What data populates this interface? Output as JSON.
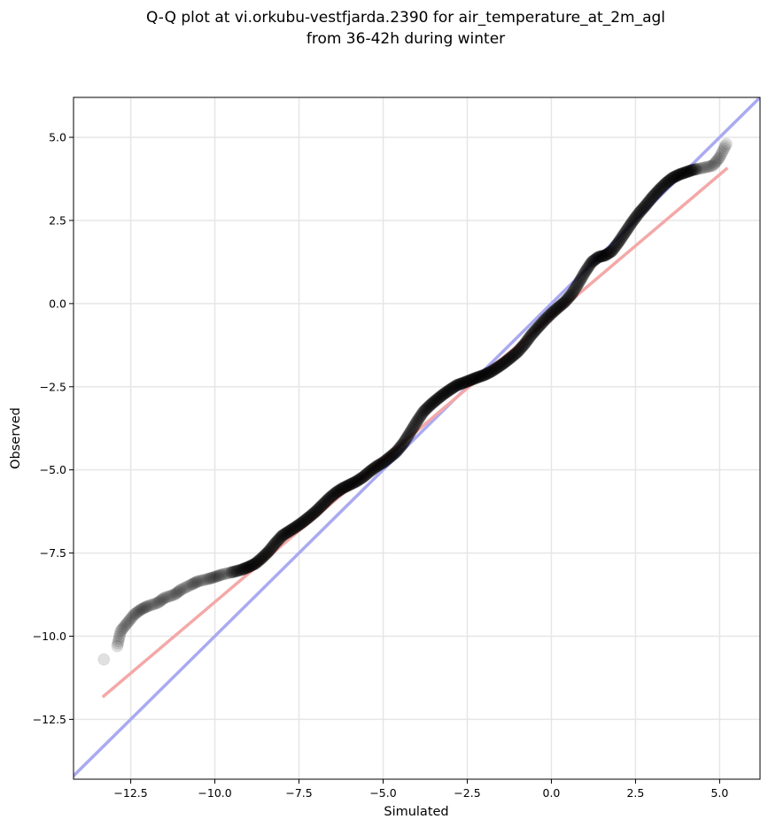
{
  "chart_data": {
    "type": "scatter",
    "title": "Q-Q plot at vi.orkubu-vestfjarda.2390 for air_temperature_at_2m_agl",
    "subtitle": "from 36-42h during winter",
    "xlabel": "Simulated",
    "ylabel": "Observed",
    "xlim": [
      -14.2,
      6.2
    ],
    "ylim": [
      -14.3,
      6.2
    ],
    "grid": true,
    "x_ticks": [
      -12.5,
      -10.0,
      -7.5,
      -5.0,
      -2.5,
      0.0,
      2.5,
      5.0
    ],
    "y_ticks": [
      -12.5,
      -10.0,
      -7.5,
      -5.0,
      -2.5,
      0.0,
      2.5,
      5.0
    ],
    "x_tick_labels": [
      "−12.5",
      "−10.0",
      "−7.5",
      "−5.0",
      "−2.5",
      "0.0",
      "2.5",
      "5.0"
    ],
    "y_tick_labels": [
      "−12.5",
      "−10.0",
      "−7.5",
      "−5.0",
      "−2.5",
      "0.0",
      "2.5",
      "5.0"
    ],
    "lines": [
      {
        "role": "identity",
        "color": "#aaaaf2",
        "x": [
          -14.2,
          6.2
        ],
        "y": [
          -14.2,
          6.2
        ]
      },
      {
        "role": "fit",
        "color": "#f4a8a8",
        "x": [
          -13.3,
          5.2
        ],
        "y": [
          -11.8,
          4.05
        ]
      }
    ],
    "quantile_points": {
      "color": "#000000",
      "x": [
        -13.3,
        -12.9,
        -12.8,
        -12.6,
        -12.4,
        -12.2,
        -12.0,
        -11.7,
        -11.5,
        -11.2,
        -11.0,
        -10.7,
        -10.5,
        -10.2,
        -10.0,
        -9.8,
        -9.5,
        -9.2,
        -9.0,
        -8.8,
        -8.6,
        -8.4,
        -8.2,
        -8.0,
        -7.8,
        -7.6,
        -7.4,
        -7.2,
        -7.0,
        -6.8,
        -6.6,
        -6.4,
        -6.2,
        -6.0,
        -5.8,
        -5.6,
        -5.4,
        -5.2,
        -5.0,
        -4.8,
        -4.6,
        -4.4,
        -4.2,
        -4.0,
        -3.8,
        -3.6,
        -3.4,
        -3.2,
        -3.0,
        -2.8,
        -2.6,
        -2.4,
        -2.2,
        -2.0,
        -1.8,
        -1.6,
        -1.4,
        -1.2,
        -1.0,
        -0.8,
        -0.6,
        -0.4,
        -0.2,
        0.0,
        0.2,
        0.4,
        0.6,
        0.8,
        1.0,
        1.2,
        1.4,
        1.6,
        1.8,
        2.0,
        2.2,
        2.4,
        2.6,
        2.8,
        3.0,
        3.2,
        3.4,
        3.6,
        3.8,
        4.0,
        4.2,
        4.5,
        4.8,
        5.0,
        5.2
      ],
      "y": [
        -10.7,
        -10.3,
        -9.85,
        -9.6,
        -9.35,
        -9.2,
        -9.1,
        -9.0,
        -8.85,
        -8.75,
        -8.6,
        -8.45,
        -8.35,
        -8.28,
        -8.22,
        -8.15,
        -8.08,
        -8.0,
        -7.92,
        -7.82,
        -7.65,
        -7.45,
        -7.2,
        -6.98,
        -6.85,
        -6.72,
        -6.58,
        -6.42,
        -6.25,
        -6.05,
        -5.85,
        -5.68,
        -5.55,
        -5.45,
        -5.35,
        -5.22,
        -5.05,
        -4.9,
        -4.78,
        -4.62,
        -4.45,
        -4.2,
        -3.88,
        -3.55,
        -3.25,
        -3.05,
        -2.88,
        -2.72,
        -2.58,
        -2.45,
        -2.38,
        -2.3,
        -2.22,
        -2.15,
        -2.05,
        -1.92,
        -1.78,
        -1.62,
        -1.45,
        -1.22,
        -0.95,
        -0.72,
        -0.5,
        -0.3,
        -0.12,
        0.05,
        0.28,
        0.6,
        0.95,
        1.25,
        1.4,
        1.45,
        1.58,
        1.85,
        2.15,
        2.45,
        2.72,
        2.95,
        3.2,
        3.42,
        3.62,
        3.78,
        3.88,
        3.95,
        4.02,
        4.08,
        4.15,
        4.4,
        4.8
      ]
    }
  }
}
